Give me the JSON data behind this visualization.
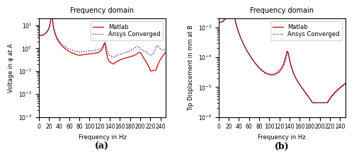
{
  "title": "Frequency domain",
  "xlabel": "Frequency in Hz",
  "ylabel_a": "Voltage in φ at A",
  "ylabel_b": "Tip Displacement in mm at B",
  "label_a": "(a)",
  "label_b": "(b)",
  "legend_matlab": "Matlab",
  "legend_ansys": "Ansys Converged",
  "xlim": [
    0,
    250
  ],
  "xticks": [
    0,
    20,
    40,
    60,
    80,
    100,
    120,
    140,
    160,
    180,
    200,
    220,
    240
  ],
  "ylim_a": [
    0.001,
    20
  ],
  "ylim_b": [
    1e-06,
    0.002
  ],
  "color_matlab": "#cc0000",
  "color_ansys": "#0000cc",
  "linestyle_matlab": "-",
  "linestyle_ansys": ":",
  "linewidth_matlab": 0.9,
  "linewidth_ansys": 0.9,
  "title_fontsize": 7,
  "label_fontsize": 6,
  "tick_fontsize": 5.5,
  "legend_fontsize": 6,
  "figsize": [
    5.0,
    2.18
  ],
  "dpi": 100
}
